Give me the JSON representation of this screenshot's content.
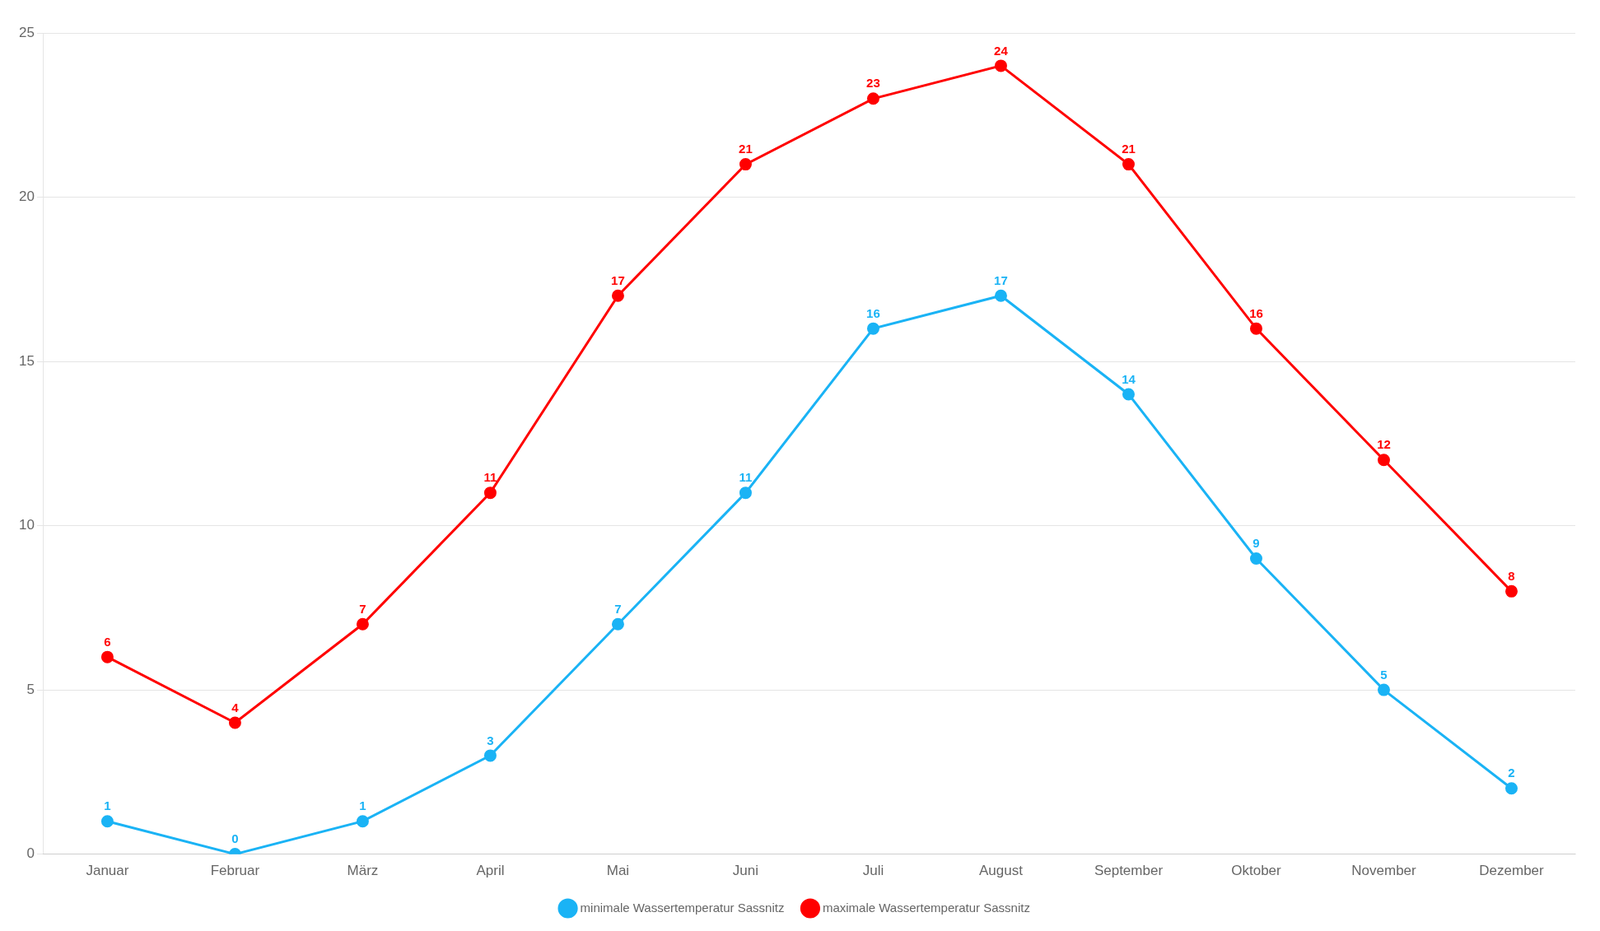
{
  "chart_data": {
    "type": "line",
    "categories": [
      "Januar",
      "Februar",
      "März",
      "April",
      "Mai",
      "Juni",
      "Juli",
      "August",
      "September",
      "Oktober",
      "November",
      "Dezember"
    ],
    "series": [
      {
        "name": "minimale Wassertemperatur Sassnitz",
        "color": "#1ab3f5",
        "marker": "circle",
        "values": [
          1,
          0,
          1,
          3,
          7,
          11,
          16,
          17,
          14,
          9,
          5,
          2
        ]
      },
      {
        "name": "maximale Wassertemperatur Sassnitz",
        "color": "#ff0000",
        "marker": "circle",
        "values": [
          6,
          4,
          7,
          11,
          17,
          21,
          23,
          24,
          21,
          16,
          12,
          8
        ]
      }
    ],
    "ylim": [
      0,
      25
    ],
    "yticks": [
      0,
      5,
      10,
      15,
      20,
      25
    ],
    "grid": "y",
    "legend": "bottom",
    "data_labels": true
  }
}
